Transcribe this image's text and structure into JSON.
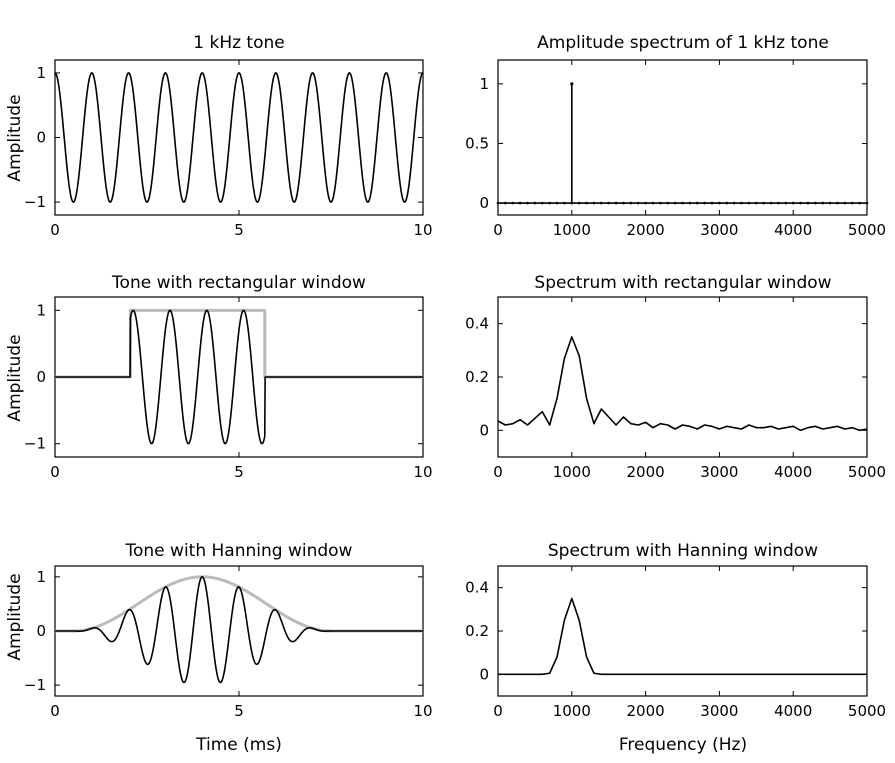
{
  "figure": {
    "xlabel_time": "Time (ms)",
    "xlabel_freq": "Frequency (Hz)",
    "ylabel": "Amplitude"
  },
  "chart_data": [
    {
      "type": "line",
      "title": "1 kHz tone",
      "xlabel": "",
      "ylabel": "Amplitude",
      "xlim": [
        0,
        10
      ],
      "ylim": [
        -1.2,
        1.2
      ],
      "xticks": [
        0,
        5,
        10
      ],
      "yticks": [
        -1,
        0,
        1
      ],
      "series": [
        {
          "color": "#000000",
          "signal": "sine",
          "frequency_khz": 1,
          "amplitude": 1,
          "x_range": [
            0,
            10
          ]
        }
      ]
    },
    {
      "type": "line",
      "title": "Amplitude spectrum of 1 kHz tone",
      "xlabel": "",
      "xlim": [
        0,
        5000
      ],
      "ylim": [
        -0.1,
        1.2
      ],
      "xticks": [
        0,
        1000,
        2000,
        3000,
        4000,
        5000
      ],
      "yticks": [
        0,
        0.5,
        1
      ],
      "series": [
        {
          "color": "#000000",
          "style": "stem",
          "bin_spacing_hz": 100,
          "x": [
            1000
          ],
          "y": [
            1
          ]
        }
      ]
    },
    {
      "type": "line",
      "title": "Tone with rectangular window",
      "xlabel": "",
      "ylabel": "Amplitude",
      "xlim": [
        0,
        10
      ],
      "ylim": [
        -1.2,
        1.2
      ],
      "xticks": [
        0,
        5,
        10
      ],
      "yticks": [
        -1,
        0,
        1
      ],
      "series": [
        {
          "color": "#bbbbbb",
          "signal": "rectangular window",
          "on_range_ms": [
            2.05,
            5.7
          ],
          "amplitude": 1
        },
        {
          "color": "#000000",
          "signal": "windowed sine",
          "frequency_khz": 1,
          "amplitude": 1,
          "on_range_ms": [
            2.05,
            5.7
          ]
        }
      ]
    },
    {
      "type": "line",
      "title": "Spectrum with rectangular window",
      "xlabel": "",
      "xlim": [
        0,
        5000
      ],
      "ylim": [
        -0.1,
        0.5
      ],
      "xticks": [
        0,
        1000,
        2000,
        3000,
        4000,
        5000
      ],
      "yticks": [
        0,
        0.2,
        0.4
      ],
      "series": [
        {
          "color": "#000000",
          "x": [
            0,
            100,
            200,
            300,
            400,
            500,
            600,
            700,
            800,
            900,
            1000,
            1100,
            1200,
            1300,
            1400,
            1500,
            1600,
            1700,
            1800,
            1900,
            2000,
            2100,
            2200,
            2300,
            2400,
            2500,
            2600,
            2700,
            2800,
            2900,
            3000,
            3100,
            3200,
            3300,
            3400,
            3500,
            3600,
            3700,
            3800,
            3900,
            4000,
            4100,
            4200,
            4300,
            4400,
            4500,
            4600,
            4700,
            4800,
            4900,
            5000
          ],
          "y": [
            0.035,
            0.02,
            0.025,
            0.04,
            0.02,
            0.045,
            0.07,
            0.02,
            0.12,
            0.27,
            0.35,
            0.28,
            0.12,
            0.025,
            0.08,
            0.05,
            0.02,
            0.05,
            0.025,
            0.02,
            0.03,
            0.01,
            0.025,
            0.02,
            0.005,
            0.02,
            0.015,
            0.005,
            0.02,
            0.015,
            0.005,
            0.015,
            0.01,
            0.005,
            0.02,
            0.01,
            0.01,
            0.015,
            0.005,
            0.01,
            0.015,
            0.0,
            0.01,
            0.015,
            0.005,
            0.01,
            0.015,
            0.005,
            0.01,
            0.0,
            0.005
          ]
        }
      ]
    },
    {
      "type": "line",
      "title": "Tone with Hanning window",
      "xlabel": "Time (ms)",
      "ylabel": "Amplitude",
      "xlim": [
        0,
        10
      ],
      "ylim": [
        -1.2,
        1.2
      ],
      "xticks": [
        0,
        5,
        10
      ],
      "yticks": [
        -1,
        0,
        1
      ],
      "series": [
        {
          "color": "#bbbbbb",
          "signal": "hanning window",
          "x_range_ms": [
            0.5,
            7.5
          ],
          "peak": 1
        },
        {
          "color": "#000000",
          "signal": "windowed sine",
          "frequency_khz": 1,
          "amplitude": 1,
          "x_range_ms": [
            0.5,
            7.5
          ]
        }
      ]
    },
    {
      "type": "line",
      "title": "Spectrum with Hanning window",
      "xlabel": "Frequency (Hz)",
      "xlim": [
        0,
        5000
      ],
      "ylim": [
        -0.1,
        0.5
      ],
      "xticks": [
        0,
        1000,
        2000,
        3000,
        4000,
        5000
      ],
      "yticks": [
        0,
        0.2,
        0.4
      ],
      "series": [
        {
          "color": "#000000",
          "x": [
            0,
            100,
            200,
            300,
            400,
            500,
            600,
            700,
            800,
            900,
            1000,
            1100,
            1200,
            1300,
            1400,
            1500,
            2000,
            3000,
            4000,
            5000
          ],
          "y": [
            0,
            0,
            0,
            0,
            0,
            0,
            0,
            0.005,
            0.08,
            0.25,
            0.35,
            0.25,
            0.08,
            0.005,
            0,
            0,
            0,
            0,
            0,
            0
          ]
        }
      ]
    }
  ]
}
